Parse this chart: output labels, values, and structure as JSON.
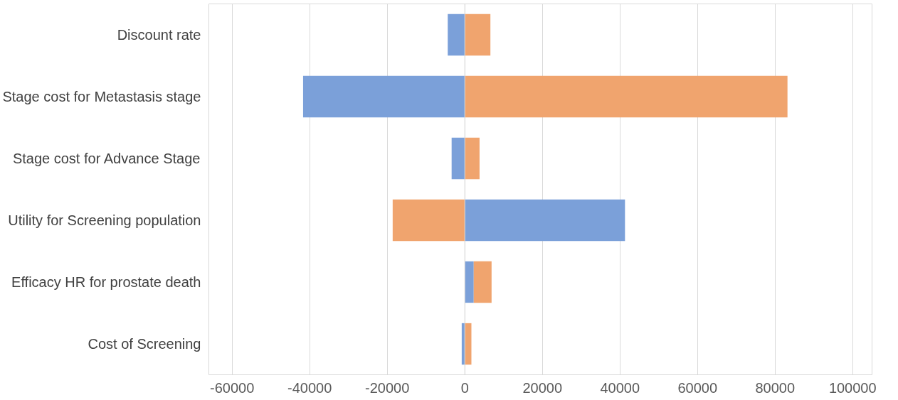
{
  "chart_data": {
    "type": "bar",
    "orientation": "horizontal",
    "stacked": true,
    "categories": [
      "Discount rate",
      "Stage cost for Metastasis stage",
      "Stage cost for Advance Stage",
      "Utility for Screening population",
      "Efficacy HR for prostate death",
      "Cost of Screening"
    ],
    "series": [
      {
        "color": "#7ba0d9",
        "values": [
          -4400,
          -41700,
          -3400,
          41300,
          2300,
          -800
        ]
      },
      {
        "color": "#f0a46e",
        "values": [
          6600,
          83200,
          3800,
          -18600,
          4600,
          1700
        ]
      }
    ],
    "xlim": [
      -66000,
      105000
    ],
    "xticks": [
      -60000,
      -40000,
      -20000,
      0,
      20000,
      40000,
      60000,
      80000,
      100000
    ],
    "grid": "x"
  }
}
